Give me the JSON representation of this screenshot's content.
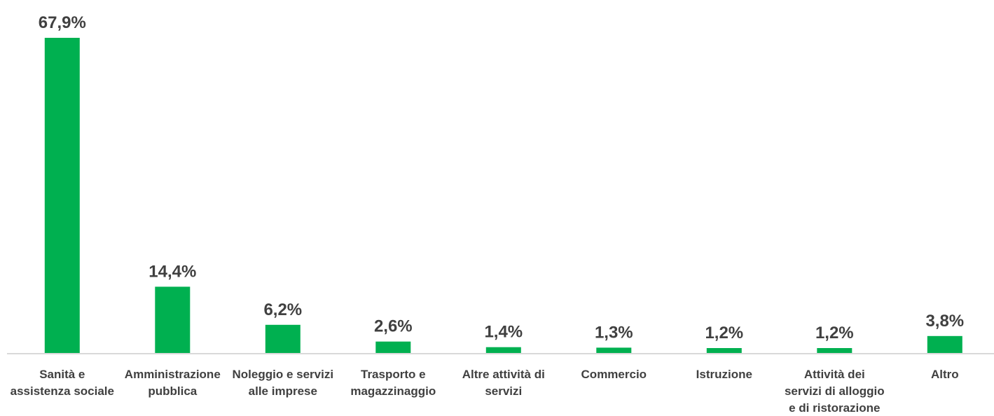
{
  "chart_data": {
    "type": "bar",
    "categories": [
      [
        "Sanità e",
        "assistenza sociale"
      ],
      [
        "Amministrazione",
        "pubblica"
      ],
      [
        "Noleggio e servizi",
        "alle imprese"
      ],
      [
        "Trasporto e",
        "magazzinaggio"
      ],
      [
        "Altre attività di",
        "servizi"
      ],
      [
        "Commercio"
      ],
      [
        "Istruzione"
      ],
      [
        "Attività dei",
        "servizi di alloggio",
        "e di ristorazione"
      ],
      [
        "Altro"
      ]
    ],
    "values": [
      67.9,
      14.4,
      6.2,
      2.6,
      1.4,
      1.3,
      1.2,
      1.2,
      3.8
    ],
    "value_labels": [
      "67,9%",
      "14,4%",
      "6,2%",
      "2,6%",
      "1,4%",
      "1,3%",
      "1,2%",
      "1,2%",
      "3,8%"
    ],
    "ylim": [
      0,
      67.9
    ],
    "grid": false,
    "legend": "none",
    "bar_color": "#00b050",
    "axis_color": "#d9d9d9",
    "text_color": "#404040"
  }
}
